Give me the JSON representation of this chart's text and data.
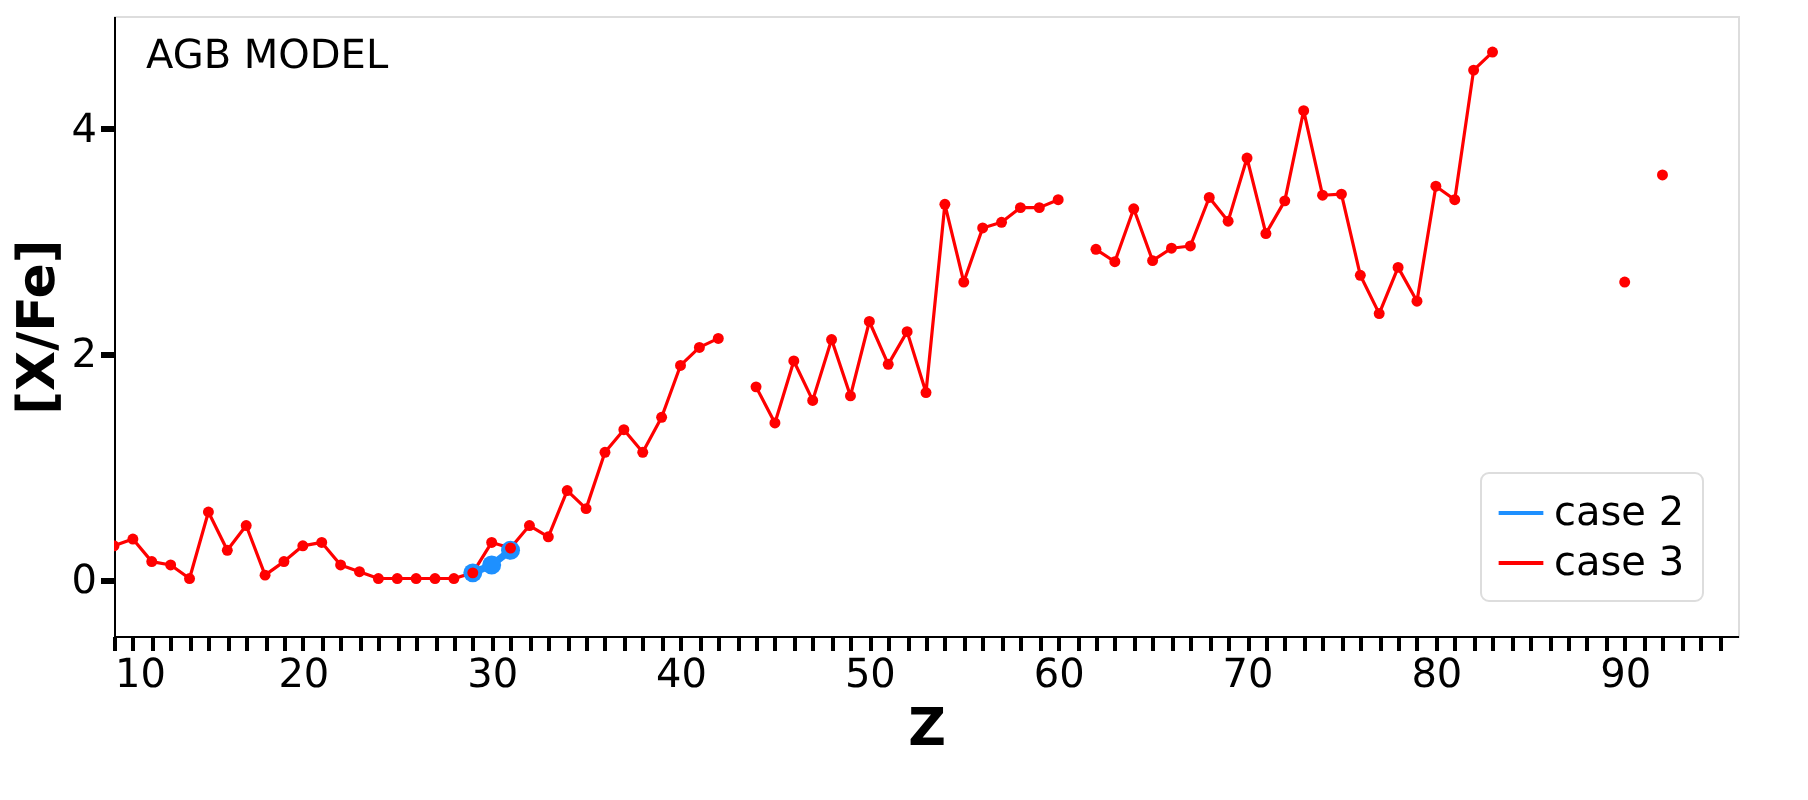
{
  "chart_data": {
    "type": "line",
    "xlabel": "Z",
    "ylabel": "[X/Fe]",
    "annotations": [
      "AGB MODEL"
    ],
    "xlim": [
      10,
      96
    ],
    "ylim": [
      -0.5,
      5
    ],
    "xticks": [
      10,
      {
        "value": 11,
        "label": null
      },
      {
        "value": 12,
        "label": null
      },
      {
        "value": 13,
        "label": null
      },
      {
        "value": 14,
        "label": null
      },
      {
        "value": 15,
        "label": null
      },
      {
        "value": 16,
        "label": null
      },
      {
        "value": 17,
        "label": null
      },
      {
        "value": 18,
        "label": null
      },
      {
        "value": 19,
        "label": null
      },
      20,
      {
        "value": 21,
        "label": null
      },
      {
        "value": 22,
        "label": null
      },
      {
        "value": 23,
        "label": null
      },
      {
        "value": 24,
        "label": null
      },
      {
        "value": 25,
        "label": null
      },
      {
        "value": 26,
        "label": null
      },
      {
        "value": 27,
        "label": null
      },
      {
        "value": 28,
        "label": null
      },
      {
        "value": 29,
        "label": null
      },
      30,
      {
        "value": 31,
        "label": null
      },
      {
        "value": 32,
        "label": null
      },
      {
        "value": 33,
        "label": null
      },
      {
        "value": 34,
        "label": null
      },
      {
        "value": 35,
        "label": null
      },
      {
        "value": 36,
        "label": null
      },
      {
        "value": 37,
        "label": null
      },
      {
        "value": 38,
        "label": null
      },
      {
        "value": 39,
        "label": null
      },
      40,
      {
        "value": 41,
        "label": null
      },
      {
        "value": 42,
        "label": null
      },
      {
        "value": 43,
        "label": null
      },
      {
        "value": 44,
        "label": null
      },
      {
        "value": 45,
        "label": null
      },
      {
        "value": 46,
        "label": null
      },
      {
        "value": 47,
        "label": null
      },
      {
        "value": 48,
        "label": null
      },
      {
        "value": 49,
        "label": null
      },
      50,
      {
        "value": 51,
        "label": null
      },
      {
        "value": 52,
        "label": null
      },
      {
        "value": 53,
        "label": null
      },
      {
        "value": 54,
        "label": null
      },
      {
        "value": 55,
        "label": null
      },
      {
        "value": 56,
        "label": null
      },
      {
        "value": 57,
        "label": null
      },
      {
        "value": 58,
        "label": null
      },
      {
        "value": 59,
        "label": null
      },
      60,
      {
        "value": 61,
        "label": null
      },
      {
        "value": 62,
        "label": null
      },
      {
        "value": 63,
        "label": null
      },
      {
        "value": 64,
        "label": null
      },
      {
        "value": 65,
        "label": null
      },
      {
        "value": 66,
        "label": null
      },
      {
        "value": 67,
        "label": null
      },
      {
        "value": 68,
        "label": null
      },
      {
        "value": 69,
        "label": null
      },
      70,
      {
        "value": 71,
        "label": null
      },
      {
        "value": 72,
        "label": null
      },
      {
        "value": 73,
        "label": null
      },
      {
        "value": 74,
        "label": null
      },
      {
        "value": 75,
        "label": null
      },
      {
        "value": 76,
        "label": null
      },
      {
        "value": 77,
        "label": null
      },
      {
        "value": 78,
        "label": null
      },
      {
        "value": 79,
        "label": null
      },
      80,
      {
        "value": 81,
        "label": null
      },
      {
        "value": 82,
        "label": null
      },
      {
        "value": 83,
        "label": null
      },
      {
        "value": 84,
        "label": null
      },
      {
        "value": 85,
        "label": null
      },
      {
        "value": 86,
        "label": null
      },
      {
        "value": 87,
        "label": null
      },
      {
        "value": 88,
        "label": null
      },
      {
        "value": 89,
        "label": null
      },
      90,
      {
        "value": 91,
        "label": null
      },
      {
        "value": 92,
        "label": null
      },
      {
        "value": 93,
        "label": null
      },
      {
        "value": 94,
        "label": null
      },
      {
        "value": 95,
        "label": null
      }
    ],
    "yticks": [
      0,
      2,
      4
    ],
    "grid": false,
    "legend": "bottom right",
    "marker": "circle",
    "line_style": "solid",
    "series": [
      {
        "name": "case 2",
        "color": "#1e90ff",
        "x": [
          29,
          30,
          31
        ],
        "values": [
          0.06,
          0.13,
          0.26
        ]
      },
      {
        "name": "case 3",
        "color": "#ff0000",
        "x": [
          10,
          11,
          12,
          13,
          14,
          15,
          16,
          17,
          18,
          19,
          20,
          21,
          22,
          23,
          24,
          25,
          26,
          27,
          28,
          29,
          30,
          31,
          32,
          33,
          34,
          35,
          36,
          37,
          38,
          39,
          40,
          41,
          42,
          43,
          44,
          45,
          46,
          47,
          48,
          49,
          50,
          51,
          52,
          53,
          54,
          55,
          56,
          57,
          58,
          59,
          60,
          61,
          62,
          63,
          64,
          65,
          66,
          67,
          68,
          69,
          70,
          71,
          72,
          73,
          74,
          75,
          76,
          77,
          78,
          79,
          80,
          81,
          82,
          83,
          84,
          85,
          86,
          87,
          88,
          89,
          90,
          91,
          92
        ],
        "values": [
          0.3,
          0.36,
          0.16,
          0.13,
          0.01,
          0.6,
          0.26,
          0.48,
          0.04,
          0.16,
          0.3,
          0.33,
          0.13,
          0.07,
          0.01,
          0.01,
          0.01,
          0.01,
          0.01,
          0.06,
          0.33,
          0.28,
          0.48,
          0.38,
          0.79,
          0.63,
          1.13,
          1.33,
          1.13,
          1.44,
          1.9,
          2.06,
          2.14,
          null,
          1.71,
          1.39,
          1.94,
          1.59,
          2.13,
          1.63,
          2.29,
          1.91,
          2.2,
          1.66,
          3.33,
          2.64,
          3.12,
          3.17,
          3.3,
          3.3,
          3.37,
          null,
          2.93,
          2.82,
          3.29,
          2.83,
          2.94,
          2.96,
          3.39,
          3.18,
          3.74,
          3.07,
          3.36,
          4.16,
          3.41,
          3.42,
          2.7,
          2.36,
          2.77,
          2.47,
          3.49,
          3.37,
          4.52,
          4.68,
          null,
          null,
          null,
          null,
          null,
          null,
          2.64,
          null,
          3.59
        ]
      }
    ]
  }
}
